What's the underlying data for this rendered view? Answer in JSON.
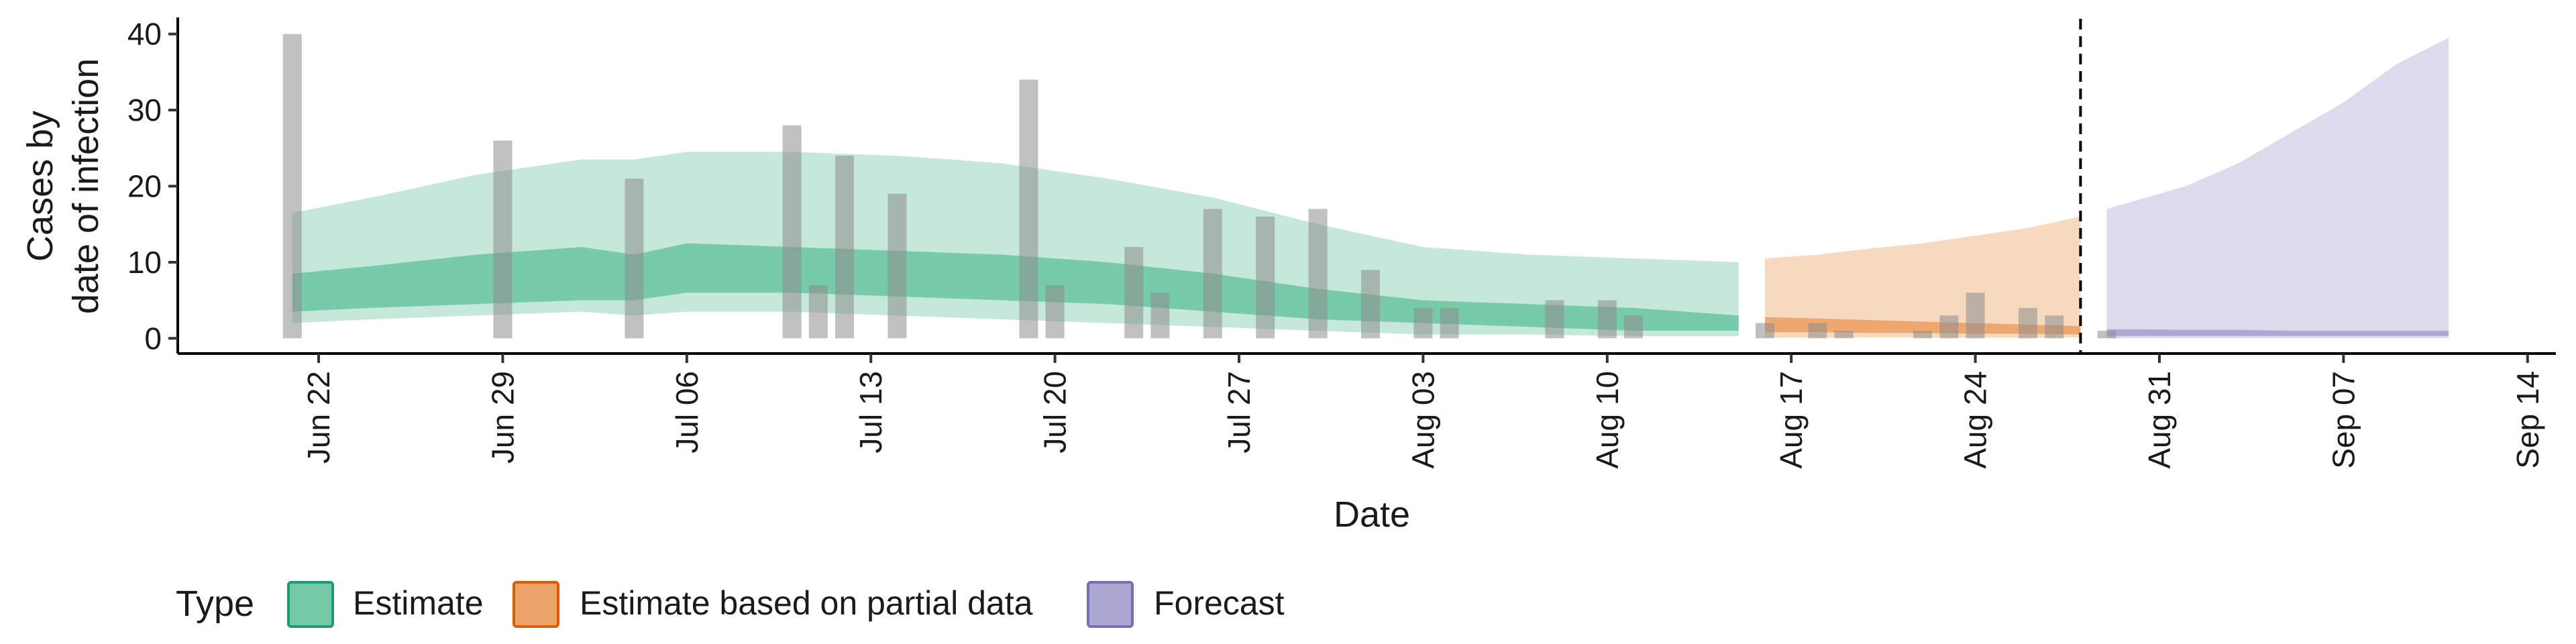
{
  "chart_data": {
    "type": "area",
    "ylabel_lines": [
      "Cases by",
      "date of infection"
    ],
    "xlabel": "Date",
    "ylim": [
      -2,
      42
    ],
    "yticks": [
      0,
      10,
      20,
      30,
      40
    ],
    "x_start": "2020-06-15",
    "xticks": [
      {
        "date": "2020-06-22",
        "label": "Jun 22"
      },
      {
        "date": "2020-06-29",
        "label": "Jun 29"
      },
      {
        "date": "2020-07-06",
        "label": "Jul 06"
      },
      {
        "date": "2020-07-13",
        "label": "Jul 13"
      },
      {
        "date": "2020-07-20",
        "label": "Jul 20"
      },
      {
        "date": "2020-07-27",
        "label": "Jul 27"
      },
      {
        "date": "2020-08-03",
        "label": "Aug 03"
      },
      {
        "date": "2020-08-10",
        "label": "Aug 10"
      },
      {
        "date": "2020-08-17",
        "label": "Aug 17"
      },
      {
        "date": "2020-08-24",
        "label": "Aug 24"
      },
      {
        "date": "2020-08-31",
        "label": "Aug 31"
      },
      {
        "date": "2020-09-07",
        "label": "Sep 07"
      },
      {
        "date": "2020-09-14",
        "label": "Sep 14"
      }
    ],
    "vline_date": "2020-08-28",
    "legend": {
      "title": "Type",
      "position": "bottom",
      "items": [
        {
          "label": "Estimate",
          "fill": "#74c9a6",
          "stroke": "#1b9e77"
        },
        {
          "label": "Estimate based on partial data",
          "fill": "#eca46a",
          "stroke": "#d95f02"
        },
        {
          "label": "Forecast",
          "fill": "#aba7d2",
          "stroke": "#7570b3"
        }
      ]
    },
    "observed_cases": [
      {
        "date": "2020-06-21",
        "value": 40
      },
      {
        "date": "2020-06-29",
        "value": 26
      },
      {
        "date": "2020-07-04",
        "value": 21
      },
      {
        "date": "2020-07-10",
        "value": 28
      },
      {
        "date": "2020-07-11",
        "value": 7
      },
      {
        "date": "2020-07-12",
        "value": 24
      },
      {
        "date": "2020-07-14",
        "value": 19
      },
      {
        "date": "2020-07-19",
        "value": 34
      },
      {
        "date": "2020-07-20",
        "value": 7
      },
      {
        "date": "2020-07-23",
        "value": 12
      },
      {
        "date": "2020-07-24",
        "value": 6
      },
      {
        "date": "2020-07-26",
        "value": 17
      },
      {
        "date": "2020-07-28",
        "value": 16
      },
      {
        "date": "2020-07-30",
        "value": 17
      },
      {
        "date": "2020-08-01",
        "value": 9
      },
      {
        "date": "2020-08-03",
        "value": 4
      },
      {
        "date": "2020-08-04",
        "value": 4
      },
      {
        "date": "2020-08-08",
        "value": 5
      },
      {
        "date": "2020-08-10",
        "value": 5
      },
      {
        "date": "2020-08-11",
        "value": 3
      },
      {
        "date": "2020-08-16",
        "value": 2
      },
      {
        "date": "2020-08-18",
        "value": 2
      },
      {
        "date": "2020-08-19",
        "value": 1
      },
      {
        "date": "2020-08-22",
        "value": 1
      },
      {
        "date": "2020-08-23",
        "value": 3
      },
      {
        "date": "2020-08-24",
        "value": 6
      },
      {
        "date": "2020-08-26",
        "value": 4
      },
      {
        "date": "2020-08-27",
        "value": 3
      },
      {
        "date": "2020-08-29",
        "value": 1
      }
    ],
    "series": [
      {
        "name": "Estimate",
        "dates": [
          "2020-06-21",
          "2020-06-24",
          "2020-06-28",
          "2020-07-02",
          "2020-07-04",
          "2020-07-06",
          "2020-07-10",
          "2020-07-14",
          "2020-07-18",
          "2020-07-22",
          "2020-07-26",
          "2020-07-30",
          "2020-08-03",
          "2020-08-07",
          "2020-08-11",
          "2020-08-15"
        ],
        "upper90": [
          16.5,
          18.5,
          21.5,
          23.5,
          23.5,
          24.5,
          24.5,
          24,
          23,
          21,
          18.5,
          15,
          12,
          11,
          10.5,
          10
        ],
        "upper50": [
          8.5,
          9.5,
          11,
          12,
          11,
          12.5,
          12,
          11.5,
          11,
          10,
          8.5,
          6.5,
          5,
          4.5,
          4,
          3
        ],
        "lower50": [
          3.5,
          4,
          4.5,
          5,
          5,
          6,
          6,
          5.5,
          5,
          4.5,
          3.5,
          2.5,
          2,
          1.5,
          1,
          1
        ],
        "lower90": [
          2,
          2.5,
          3,
          3.5,
          3,
          3.5,
          3.5,
          3,
          2.5,
          2,
          1.5,
          1,
          0.5,
          0.5,
          0.3,
          0.3
        ]
      },
      {
        "name": "Estimate based on partial data",
        "dates": [
          "2020-08-16",
          "2020-08-18",
          "2020-08-20",
          "2020-08-22",
          "2020-08-24",
          "2020-08-26",
          "2020-08-28"
        ],
        "upper90": [
          10.5,
          11,
          11.8,
          12.5,
          13.5,
          14.5,
          16
        ],
        "upper50": [
          2.8,
          2.6,
          2.4,
          2.2,
          2.0,
          1.8,
          1.6
        ],
        "lower50": [
          0.8,
          0.8,
          0.7,
          0.7,
          0.6,
          0.6,
          0.5
        ],
        "lower90": [
          0.1,
          0.1,
          0.1,
          0.1,
          0.1,
          0.1,
          0.1
        ]
      },
      {
        "name": "Forecast",
        "dates": [
          "2020-08-29",
          "2020-08-30",
          "2020-09-01",
          "2020-09-03",
          "2020-09-05",
          "2020-09-07",
          "2020-09-09",
          "2020-09-11"
        ],
        "upper90": [
          17,
          18,
          20,
          23,
          27,
          31,
          36,
          39.5
        ],
        "upper50": [
          1.2,
          1.2,
          1.1,
          1.1,
          1.0,
          1.0,
          1.0,
          1.0
        ],
        "lower50": [
          0.3,
          0.3,
          0.3,
          0.3,
          0.3,
          0.3,
          0.3,
          0.3
        ],
        "lower90": [
          0.0,
          0.0,
          0.0,
          0.0,
          0.0,
          0.0,
          0.0,
          0.0
        ]
      }
    ]
  }
}
